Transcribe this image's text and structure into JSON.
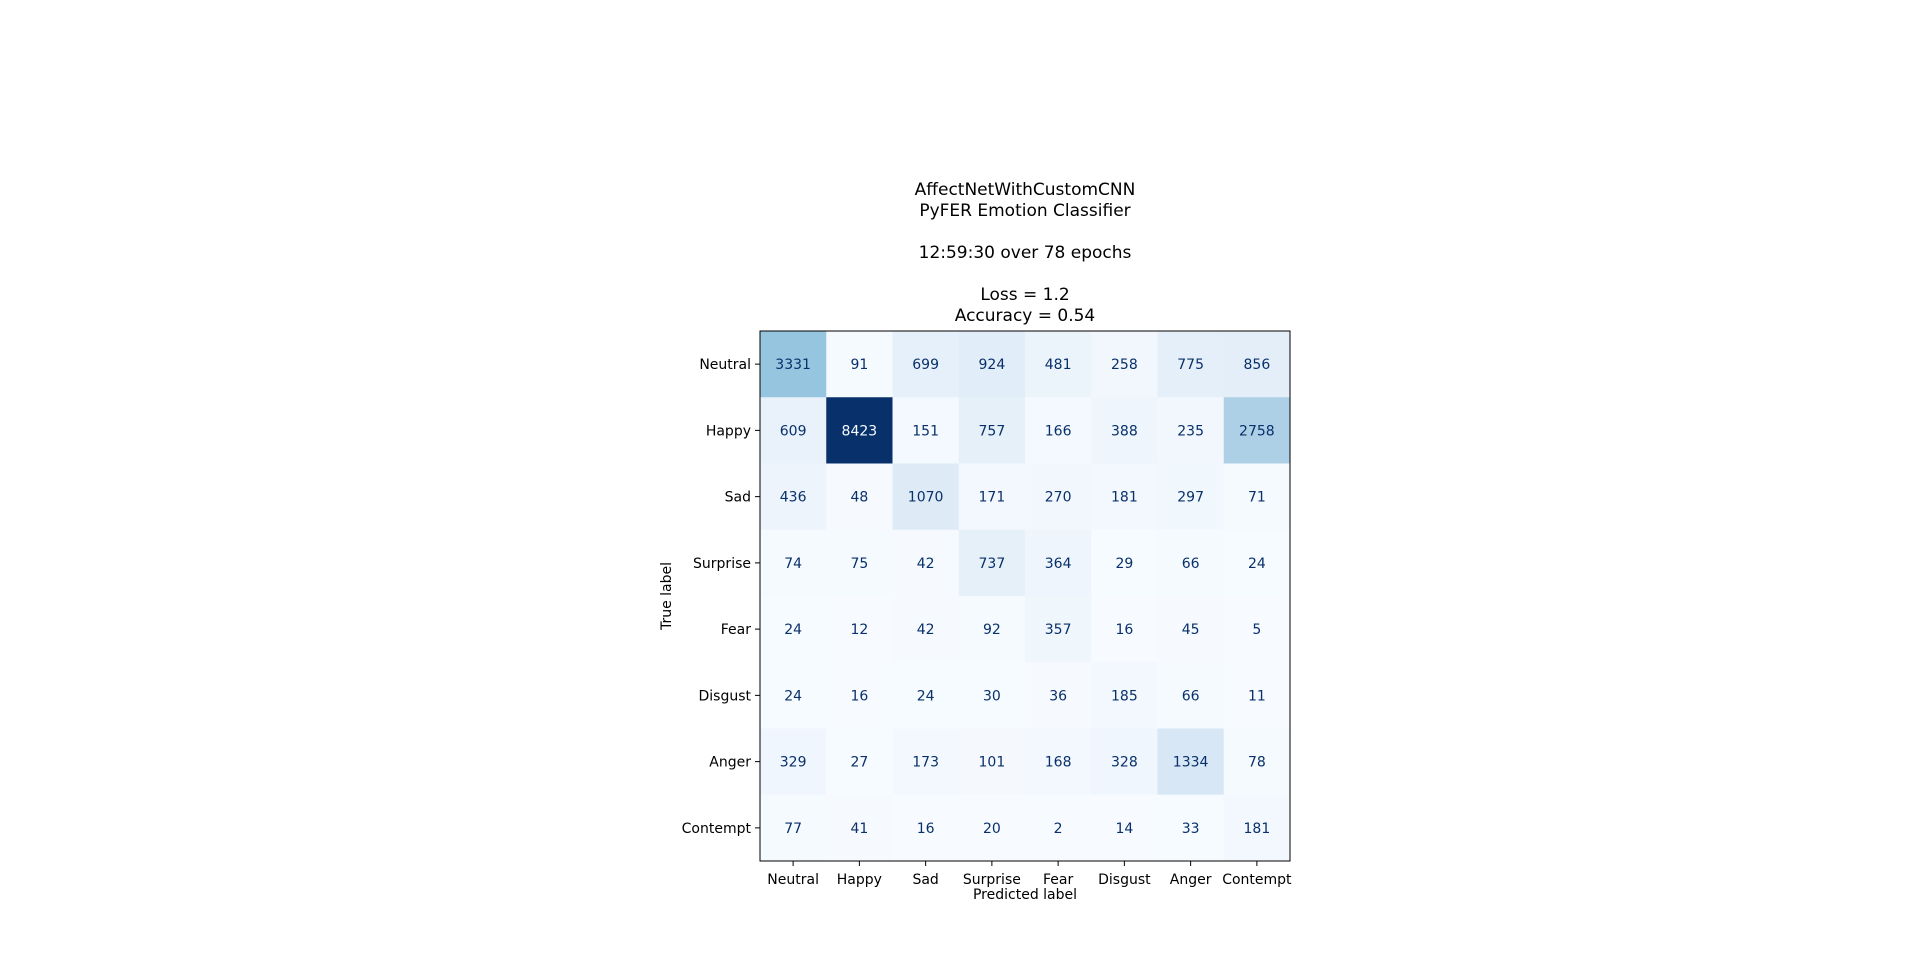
{
  "chart_data": {
    "type": "heatmap",
    "title_lines": [
      "AffectNetWithCustomCNN",
      "PyFER Emotion Classifier",
      "",
      "12:59:30 over 78 epochs",
      "",
      "Loss = 1.2",
      "Accuracy = 0.54"
    ],
    "xlabel": "Predicted label",
    "ylabel": "True label",
    "x_categories": [
      "Neutral",
      "Happy",
      "Sad",
      "Surprise",
      "Fear",
      "Disgust",
      "Anger",
      "Contempt"
    ],
    "y_categories": [
      "Neutral",
      "Happy",
      "Sad",
      "Surprise",
      "Fear",
      "Disgust",
      "Anger",
      "Contempt"
    ],
    "values": [
      [
        3331,
        91,
        699,
        924,
        481,
        258,
        775,
        856
      ],
      [
        609,
        8423,
        151,
        757,
        166,
        388,
        235,
        2758
      ],
      [
        436,
        48,
        1070,
        171,
        270,
        181,
        297,
        71
      ],
      [
        74,
        75,
        42,
        737,
        364,
        29,
        66,
        24
      ],
      [
        24,
        12,
        42,
        92,
        357,
        16,
        45,
        5
      ],
      [
        24,
        16,
        24,
        30,
        36,
        185,
        66,
        11
      ],
      [
        329,
        27,
        173,
        101,
        168,
        328,
        1334,
        78
      ],
      [
        77,
        41,
        16,
        20,
        2,
        14,
        33,
        181
      ]
    ],
    "colormap": "Blues",
    "colorbar": false,
    "grid": false
  }
}
